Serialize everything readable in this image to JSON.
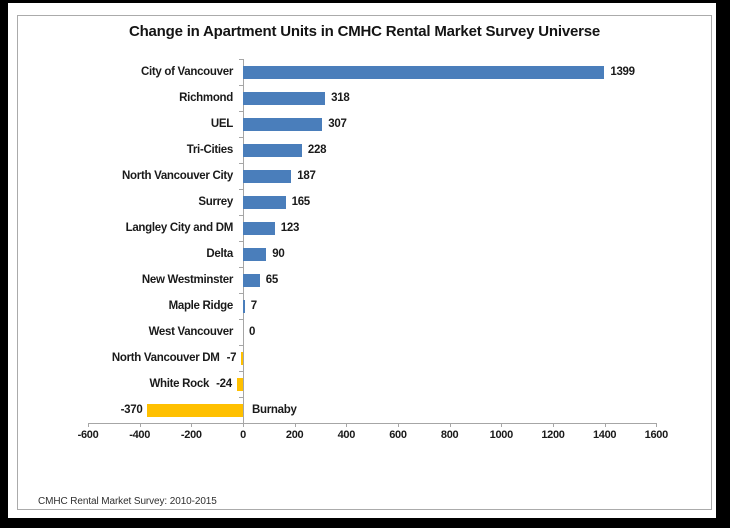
{
  "chart_data": {
    "type": "bar",
    "orientation": "horizontal",
    "title": "Change in Apartment Units in CMHC Rental Market Survey Universe",
    "categories": [
      "City of Vancouver",
      "Richmond",
      "UEL",
      "Tri-Cities",
      "North Vancouver City",
      "Surrey",
      "Langley City and DM",
      "Delta",
      "New Westminster",
      "Maple Ridge",
      "West Vancouver",
      "North Vancouver DM",
      "White Rock",
      "Burnaby"
    ],
    "values": [
      1399,
      318,
      307,
      228,
      187,
      165,
      123,
      90,
      65,
      7,
      0,
      -7,
      -24,
      -370
    ],
    "data_labels": [
      "1399",
      "318",
      "307",
      "228",
      "187",
      "165",
      "123",
      "90",
      "65",
      "7",
      "0",
      "-7",
      "-24",
      "-370"
    ],
    "xlim": [
      -600,
      1600
    ],
    "x_ticks": [
      -600,
      -400,
      -200,
      0,
      200,
      400,
      600,
      800,
      1000,
      1200,
      1400,
      1600
    ],
    "x_tick_labels": [
      "-600",
      "-400",
      "-200",
      "0",
      "200",
      "400",
      "600",
      "800",
      "1000",
      "1200",
      "1400",
      "1600"
    ],
    "grid": false,
    "legend": "none",
    "colors": {
      "positive_bar": "#4A7EBB",
      "negative_bar": "#FFC000",
      "axis_line": "#a6a6a6"
    }
  },
  "footer": {
    "source_note": "CMHC Rental Market Survey: 2010-2015"
  }
}
